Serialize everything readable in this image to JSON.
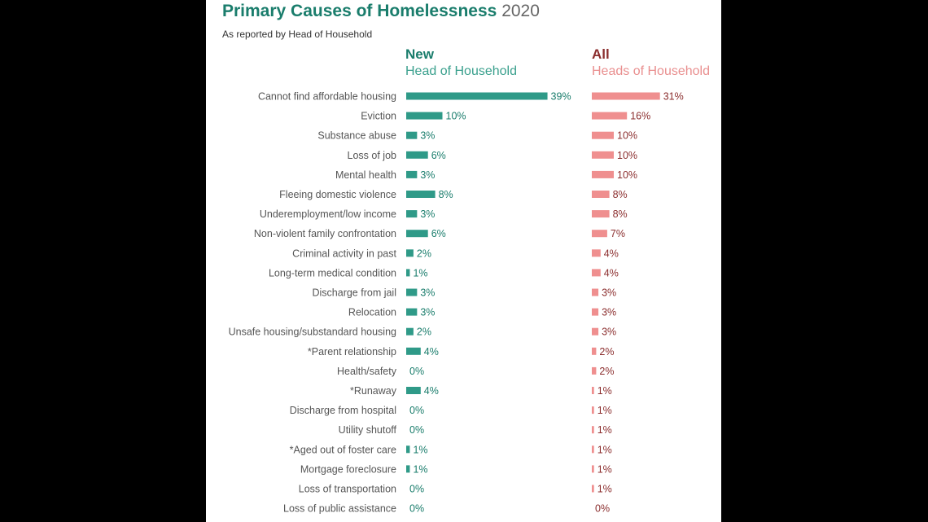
{
  "title": {
    "main": "Primary Causes of Homelessness",
    "year": "2020"
  },
  "subtitle": "As reported by Head of Household",
  "headers": {
    "new": {
      "line1": "New",
      "line2": "Head of Household"
    },
    "all": {
      "line1": "All",
      "line2": "Heads of Household"
    }
  },
  "colors": {
    "new": "#2f9a88",
    "all": "#ef8f8f",
    "title": "#1a7d6c"
  },
  "chart_data": {
    "type": "bar",
    "orientation": "horizontal",
    "categories": [
      "Cannot find affordable housing",
      "Eviction",
      "Substance abuse",
      "Loss of job",
      "Mental health",
      "Fleeing domestic violence",
      "Underemployment/low income",
      "Non-violent family confrontation",
      "Criminal activity in past",
      "Long-term medical condition",
      "Discharge from jail",
      "Relocation",
      "Unsafe housing/substandard housing",
      "*Parent relationship",
      "Health/safety",
      "*Runaway",
      "Discharge from hospital",
      "Utility shutoff",
      "*Aged out of foster care",
      "Mortgage foreclosure",
      "Loss of transportation",
      "Loss of public assistance"
    ],
    "series": [
      {
        "name": "New Head of Household",
        "values": [
          39,
          10,
          3,
          6,
          3,
          8,
          3,
          6,
          2,
          1,
          3,
          3,
          2,
          4,
          0,
          4,
          0,
          0,
          1,
          1,
          0,
          0
        ]
      },
      {
        "name": "All Heads of Household",
        "values": [
          31,
          16,
          10,
          10,
          10,
          8,
          8,
          7,
          4,
          4,
          3,
          3,
          3,
          2,
          2,
          1,
          1,
          1,
          1,
          1,
          1,
          0
        ]
      }
    ],
    "value_suffix": "%"
  }
}
